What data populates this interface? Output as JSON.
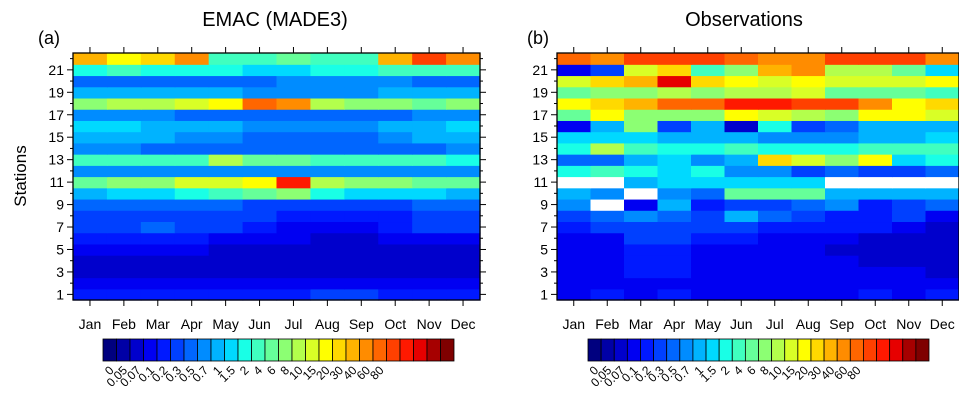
{
  "panels": [
    {
      "id": "a",
      "label": "(a)",
      "title": "EMAC (MADE3)"
    },
    {
      "id": "b",
      "label": "(b)",
      "title": "Observations"
    }
  ],
  "ylabel": "Stations",
  "months": [
    "Jan",
    "Feb",
    "Mar",
    "Apr",
    "May",
    "Jun",
    "Jul",
    "Aug",
    "Sep",
    "Oct",
    "Nov",
    "Dec"
  ],
  "station_ticks": [
    "1",
    "3",
    "5",
    "7",
    "9",
    "11",
    "13",
    "15",
    "17",
    "19",
    "21"
  ],
  "colorbar": {
    "levels": [
      "0",
      "0.05",
      "0.07",
      "0.1",
      "0.2",
      "0.3",
      "0.5",
      "0.7",
      "1",
      "1.5",
      "2",
      "4",
      "6",
      "8",
      "10",
      "15",
      "20",
      "30",
      "40",
      "60",
      "80"
    ],
    "colors": [
      "#00007f",
      "#0000a6",
      "#0000cc",
      "#0000f2",
      "#0019ff",
      "#0040ff",
      "#0066ff",
      "#008cff",
      "#00b3ff",
      "#00d9ff",
      "#19ffe6",
      "#40ffbf",
      "#66ff99",
      "#8cff73",
      "#b3ff4c",
      "#d9ff26",
      "#ffff00",
      "#ffd900",
      "#ffb300",
      "#ff8c00",
      "#ff6600",
      "#ff4000",
      "#ff1900",
      "#e60000",
      "#a60000",
      "#7f0000"
    ]
  },
  "chart_data": [
    {
      "type": "heatmap",
      "title": "EMAC (MADE3)",
      "panel_label": "(a)",
      "xlabel": "",
      "ylabel": "Stations",
      "x": [
        "Jan",
        "Feb",
        "Mar",
        "Apr",
        "May",
        "Jun",
        "Jul",
        "Aug",
        "Sep",
        "Oct",
        "Nov",
        "Dec"
      ],
      "y": [
        "1",
        "2",
        "3",
        "4",
        "5",
        "6",
        "7",
        "8",
        "9",
        "10",
        "11",
        "12",
        "13",
        "14",
        "15",
        "16",
        "17",
        "18",
        "19",
        "20",
        "21",
        "22"
      ],
      "value_scale": "color index 0-25 (colorbar bins)",
      "values": [
        [
          4,
          4,
          4,
          4,
          4,
          4,
          4,
          5,
          5,
          4,
          4,
          4
        ],
        [
          3,
          3,
          3,
          3,
          3,
          3,
          3,
          3,
          3,
          3,
          3,
          3
        ],
        [
          2,
          2,
          2,
          2,
          2,
          2,
          2,
          2,
          2,
          2,
          2,
          2
        ],
        [
          2,
          2,
          2,
          2,
          2,
          2,
          2,
          2,
          2,
          2,
          2,
          2
        ],
        [
          3,
          3,
          3,
          3,
          2,
          2,
          2,
          2,
          2,
          2,
          2,
          2
        ],
        [
          4,
          4,
          4,
          4,
          3,
          3,
          3,
          2,
          2,
          3,
          3,
          3
        ],
        [
          5,
          5,
          6,
          5,
          5,
          4,
          3,
          3,
          3,
          4,
          5,
          5
        ],
        [
          5,
          5,
          5,
          5,
          5,
          5,
          4,
          4,
          4,
          4,
          5,
          5
        ],
        [
          6,
          6,
          6,
          6,
          6,
          5,
          5,
          5,
          5,
          5,
          6,
          6
        ],
        [
          8,
          9,
          9,
          10,
          11,
          12,
          13,
          10,
          9,
          9,
          9,
          8
        ],
        [
          12,
          13,
          13,
          15,
          15,
          16,
          22,
          14,
          13,
          13,
          12,
          12
        ],
        [
          7,
          7,
          7,
          7,
          7,
          7,
          7,
          7,
          7,
          7,
          7,
          7
        ],
        [
          11,
          11,
          11,
          11,
          14,
          12,
          12,
          11,
          11,
          11,
          11,
          10
        ],
        [
          7,
          7,
          6,
          6,
          6,
          6,
          6,
          6,
          6,
          6,
          6,
          7
        ],
        [
          8,
          8,
          8,
          7,
          7,
          6,
          6,
          6,
          6,
          7,
          8,
          8
        ],
        [
          9,
          9,
          8,
          8,
          8,
          7,
          7,
          7,
          7,
          8,
          8,
          9
        ],
        [
          7,
          7,
          7,
          6,
          6,
          6,
          6,
          6,
          6,
          6,
          7,
          7
        ],
        [
          13,
          14,
          14,
          15,
          16,
          20,
          19,
          14,
          13,
          13,
          12,
          13
        ],
        [
          8,
          8,
          8,
          8,
          8,
          7,
          7,
          7,
          7,
          8,
          8,
          8
        ],
        [
          6,
          6,
          6,
          6,
          6,
          6,
          7,
          7,
          7,
          7,
          6,
          6
        ],
        [
          10,
          11,
          10,
          10,
          10,
          9,
          9,
          10,
          10,
          11,
          11,
          11
        ],
        [
          18,
          16,
          17,
          19,
          11,
          11,
          12,
          11,
          11,
          18,
          21,
          19
        ]
      ]
    },
    {
      "type": "heatmap",
      "title": "Observations",
      "panel_label": "(b)",
      "xlabel": "",
      "ylabel": "",
      "x": [
        "Jan",
        "Feb",
        "Mar",
        "Apr",
        "May",
        "Jun",
        "Jul",
        "Aug",
        "Sep",
        "Oct",
        "Nov",
        "Dec"
      ],
      "y": [
        "1",
        "2",
        "3",
        "4",
        "5",
        "6",
        "7",
        "8",
        "9",
        "10",
        "11",
        "12",
        "13",
        "14",
        "15",
        "16",
        "17",
        "18",
        "19",
        "20",
        "21",
        "22"
      ],
      "value_scale": "color index 0-25 (colorbar bins); null = missing (white)",
      "values": [
        [
          3,
          4,
          3,
          4,
          3,
          3,
          3,
          3,
          3,
          4,
          3,
          4
        ],
        [
          3,
          3,
          3,
          3,
          3,
          3,
          3,
          3,
          3,
          3,
          3,
          3
        ],
        [
          3,
          3,
          4,
          4,
          3,
          3,
          3,
          3,
          3,
          3,
          3,
          2
        ],
        [
          3,
          3,
          4,
          4,
          3,
          3,
          3,
          3,
          3,
          2,
          2,
          2
        ],
        [
          3,
          3,
          4,
          4,
          3,
          3,
          3,
          3,
          2,
          2,
          2,
          2
        ],
        [
          3,
          3,
          5,
          5,
          4,
          4,
          3,
          3,
          3,
          2,
          2,
          2
        ],
        [
          4,
          5,
          5,
          5,
          5,
          5,
          4,
          4,
          4,
          4,
          3,
          2
        ],
        [
          5,
          6,
          7,
          6,
          5,
          8,
          6,
          5,
          4,
          4,
          5,
          3
        ],
        [
          7,
          null,
          3,
          8,
          4,
          5,
          5,
          6,
          7,
          4,
          5,
          6
        ],
        [
          8,
          7,
          null,
          7,
          6,
          12,
          12,
          12,
          8,
          8,
          8,
          8
        ],
        [
          null,
          null,
          8,
          9,
          9,
          9,
          9,
          9,
          null,
          null,
          null,
          null
        ],
        [
          10,
          11,
          10,
          9,
          10,
          7,
          7,
          5,
          6,
          5,
          5,
          6
        ],
        [
          6,
          6,
          8,
          9,
          7,
          8,
          17,
          15,
          13,
          16,
          9,
          10
        ],
        [
          10,
          14,
          11,
          10,
          10,
          11,
          10,
          10,
          10,
          11,
          11,
          11
        ],
        [
          9,
          9,
          9,
          8,
          8,
          8,
          7,
          7,
          7,
          8,
          8,
          9
        ],
        [
          3,
          8,
          13,
          5,
          8,
          2,
          10,
          5,
          6,
          8,
          8,
          8
        ],
        [
          12,
          16,
          13,
          13,
          13,
          16,
          15,
          14,
          13,
          16,
          16,
          15
        ],
        [
          16,
          17,
          18,
          20,
          20,
          22,
          22,
          21,
          21,
          19,
          16,
          17
        ],
        [
          12,
          13,
          13,
          14,
          13,
          14,
          14,
          15,
          12,
          12,
          12,
          11
        ],
        [
          15,
          17,
          18,
          23,
          17,
          16,
          15,
          16,
          15,
          15,
          15,
          16
        ],
        [
          3,
          5,
          15,
          17,
          11,
          13,
          18,
          19,
          14,
          14,
          12,
          9
        ],
        [
          20,
          19,
          21,
          21,
          21,
          20,
          19,
          19,
          21,
          21,
          21,
          19
        ]
      ]
    }
  ]
}
